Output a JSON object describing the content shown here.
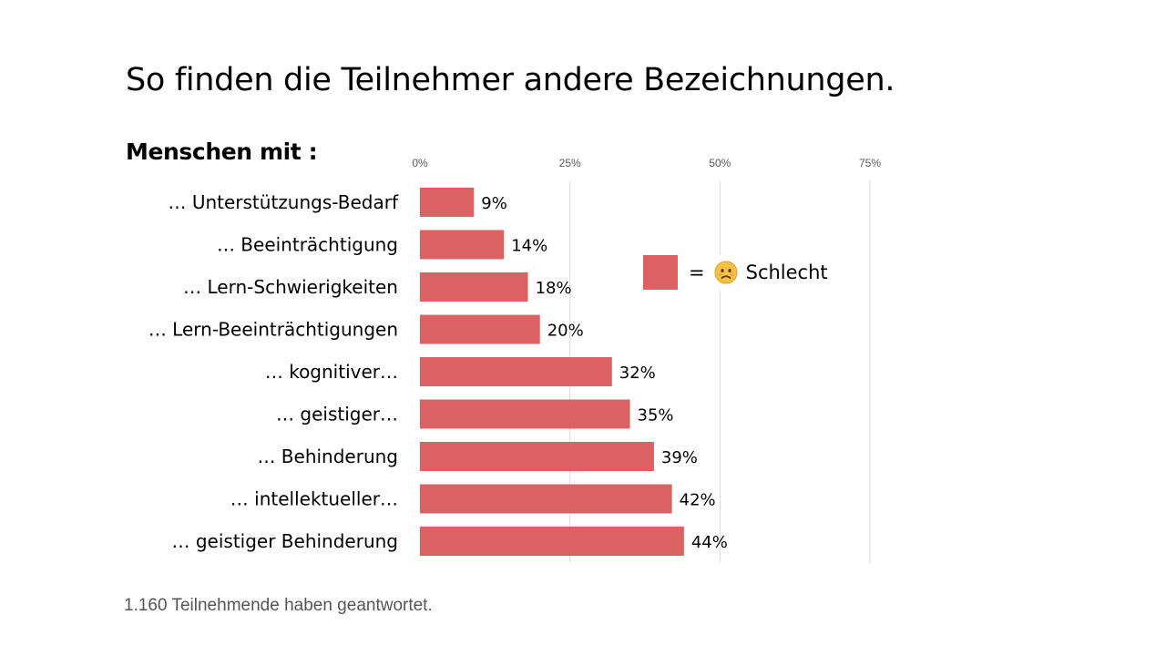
{
  "slide": {
    "title": "So finden die Teilnehmer andere Bezeichnungen.",
    "subtitle": "Menschen mit :",
    "footnote": "1.160 Teilnehmende haben geantwortet."
  },
  "legend": {
    "symbol": "=",
    "label": "Schlecht",
    "icon": "sad-face-icon",
    "color": "#db6162"
  },
  "chart_data": {
    "type": "bar",
    "orientation": "horizontal",
    "categories": [
      "… Unterstützungs-Bedarf",
      "… Beeinträchtigung",
      "… Lern-Schwierigkeiten",
      "… Lern-Beeinträchtigungen",
      "… kognitiver…",
      "… geistiger…",
      "… Behinderung",
      "… intellektueller…",
      "… geistiger Behinderung"
    ],
    "series": [
      {
        "name": "Schlecht",
        "values": [
          9,
          14,
          18,
          20,
          32,
          35,
          39,
          42,
          44
        ]
      }
    ],
    "value_labels": [
      "9%",
      "14%",
      "18%",
      "20%",
      "32%",
      "35%",
      "39%",
      "42%",
      "44%"
    ],
    "ticks": [
      0,
      25,
      50,
      75
    ],
    "tick_labels": [
      "0%",
      "25%",
      "50%",
      "75%"
    ],
    "xlim": [
      0,
      75
    ],
    "grid": true,
    "axis_position": "top",
    "bar_color": "#db6162"
  }
}
